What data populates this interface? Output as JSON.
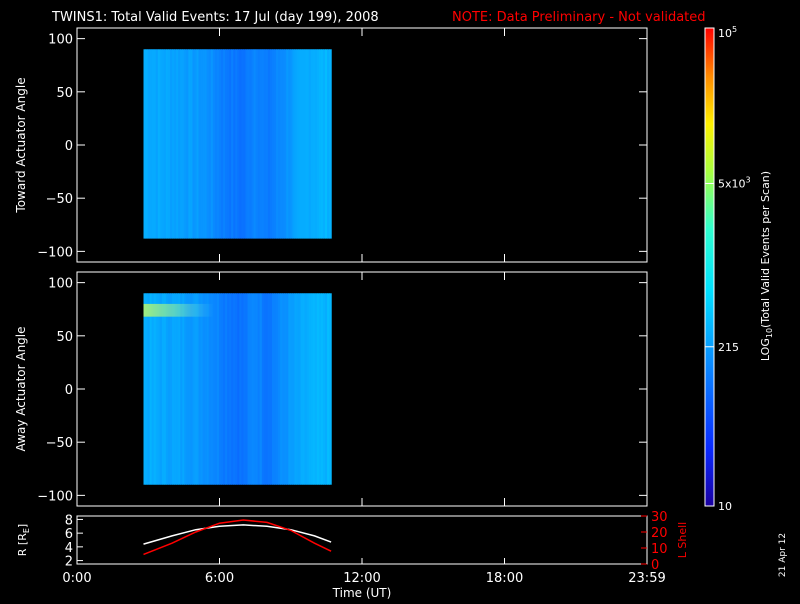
{
  "header": {
    "title": "TWINS1: Total Valid Events: 17 Jul (day 199), 2008",
    "note": "NOTE: Data Preliminary - Not validated"
  },
  "colors": {
    "background": "#000000",
    "foreground": "#ffffff",
    "note": "#ff0000",
    "r_line": "#ffffff",
    "lshell_line": "#ff0000"
  },
  "colorbar": {
    "scale": "log",
    "range": [
      10,
      100000
    ],
    "label_prefix": "LOG",
    "label_sub": "10",
    "label_suffix": "(Total Valid Events per Scan)",
    "ticks": [
      {
        "value": 100000,
        "base": "10",
        "exp": "5"
      },
      {
        "value": 5000,
        "base": "5x10",
        "exp": "3"
      },
      {
        "value": 215,
        "base": "215",
        "exp": ""
      },
      {
        "value": 10,
        "base": "10",
        "exp": ""
      }
    ]
  },
  "footer": {
    "date_stamp": "21 Apr 12"
  },
  "chart_data": [
    {
      "type": "heatmap",
      "panel": "toward",
      "ylabel": "Toward Actuator Angle",
      "xlim": [
        0,
        24
      ],
      "ylim": [
        -110,
        110
      ],
      "yticks": [
        100,
        50,
        0,
        -50,
        -100
      ],
      "ytick_labels": [
        "100",
        "50",
        "0",
        "−50",
        "−100"
      ],
      "data_time_range": [
        2.8,
        10.7
      ],
      "data_angle_range": [
        -88,
        90
      ],
      "time_profile": {
        "t": [
          2.8,
          3.5,
          4.5,
          5.5,
          6.2,
          7.0,
          7.5,
          8.0,
          9.0,
          9.8,
          10.7
        ],
        "log_counts": [
          2.45,
          2.4,
          2.35,
          2.25,
          2.1,
          2.0,
          2.2,
          2.05,
          2.3,
          2.45,
          2.5
        ]
      },
      "enhancement_band": null
    },
    {
      "type": "heatmap",
      "panel": "away",
      "ylabel": "Away Actuator Angle",
      "xlim": [
        0,
        24
      ],
      "ylim": [
        -110,
        110
      ],
      "yticks": [
        100,
        50,
        0,
        -50,
        -100
      ],
      "ytick_labels": [
        "100",
        "50",
        "0",
        "−50",
        "−100"
      ],
      "data_time_range": [
        2.8,
        10.7
      ],
      "data_angle_range": [
        -90,
        90
      ],
      "time_profile": {
        "t": [
          2.8,
          3.5,
          4.5,
          5.5,
          6.2,
          7.0,
          7.5,
          8.0,
          9.0,
          9.8,
          10.7
        ],
        "log_counts": [
          2.45,
          2.4,
          2.35,
          2.25,
          2.1,
          2.0,
          2.2,
          2.05,
          2.3,
          2.45,
          2.5
        ]
      },
      "enhancement_band": {
        "angle_range": [
          68,
          80
        ],
        "t_end": 6.5,
        "log_counts": 2.9
      }
    },
    {
      "type": "line",
      "panel": "orbit",
      "ylabel": "R [R",
      "ylabel_sub": "E",
      "ylabel_suffix": "]",
      "y2label": "L Shell",
      "xlabel": "Time (UT)",
      "xlim": [
        0,
        24
      ],
      "xticks": [
        0,
        6,
        12,
        18,
        24
      ],
      "xtick_labels": [
        "0:00",
        "6:00",
        "12:00",
        "18:00",
        "23:59"
      ],
      "ylim": [
        1.5,
        8.5
      ],
      "yticks": [
        2,
        4,
        6,
        8
      ],
      "y2lim": [
        0,
        30
      ],
      "y2ticks": [
        0,
        10,
        20,
        30
      ],
      "series": [
        {
          "axis": "left",
          "x": [
            2.8,
            4.0,
            5.0,
            6.0,
            7.0,
            8.0,
            9.0,
            10.0,
            10.7
          ],
          "y": [
            4.4,
            5.6,
            6.5,
            7.0,
            7.2,
            7.0,
            6.5,
            5.6,
            4.7
          ]
        },
        {
          "axis": "right",
          "x": [
            2.8,
            4.0,
            5.0,
            6.0,
            7.0,
            8.0,
            9.0,
            10.0,
            10.7
          ],
          "y": [
            6.0,
            13.0,
            20.0,
            25.5,
            27.5,
            26.0,
            21.0,
            13.0,
            8.0
          ]
        }
      ]
    }
  ]
}
